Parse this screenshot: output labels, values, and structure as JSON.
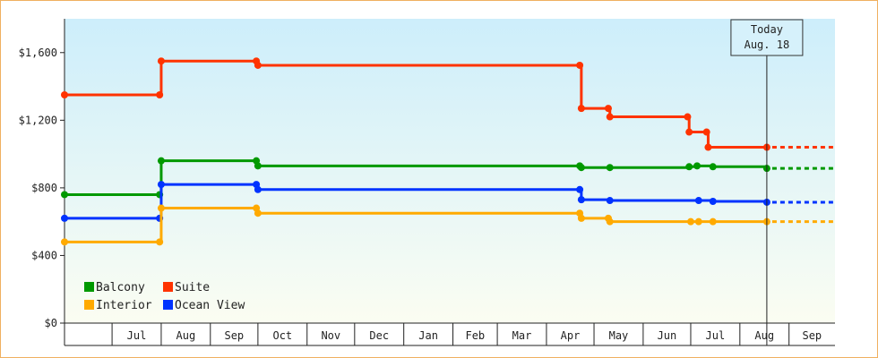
{
  "chart_data": {
    "type": "line",
    "step": true,
    "title": "",
    "xlabel": "",
    "ylabel": "",
    "x_range": [
      "2024-06-01",
      "2025-09-30"
    ],
    "ylim": [
      0,
      1800
    ],
    "yticks": [
      0,
      400,
      800,
      1200,
      1600
    ],
    "ytick_labels": [
      "$0",
      "$400",
      "$800",
      "$1,200",
      "$1,600"
    ],
    "xtick_labels": [
      {
        "date": "2024-07-01",
        "label": "Jul"
      },
      {
        "date": "2024-08-01",
        "label": "Aug"
      },
      {
        "date": "2024-09-01",
        "label": "Sep"
      },
      {
        "date": "2024-10-01",
        "label": "Oct"
      },
      {
        "date": "2024-11-01",
        "label": "Nov"
      },
      {
        "date": "2024-12-01",
        "label": "Dec"
      },
      {
        "date": "2025-01-01",
        "label": "Jan"
      },
      {
        "date": "2025-02-01",
        "label": "Feb"
      },
      {
        "date": "2025-03-01",
        "label": "Mar"
      },
      {
        "date": "2025-04-01",
        "label": "Apr"
      },
      {
        "date": "2025-05-01",
        "label": "May"
      },
      {
        "date": "2025-06-01",
        "label": "Jun"
      },
      {
        "date": "2025-07-01",
        "label": "Jul"
      },
      {
        "date": "2025-08-01",
        "label": "Aug"
      },
      {
        "date": "2025-09-01",
        "label": "Sep"
      }
    ],
    "grid": false,
    "legend_position": "bottom-left",
    "today": {
      "date": "2025-08-18",
      "label_line1": "Today",
      "label_line2": "Aug. 18"
    },
    "projection_end": "2025-09-30",
    "series": [
      {
        "name": "Suite",
        "color": "#ff3300",
        "points": [
          [
            "2024-06-01",
            1350
          ],
          [
            "2024-07-31",
            1350
          ],
          [
            "2024-08-01",
            1550
          ],
          [
            "2024-09-30",
            1550
          ],
          [
            "2024-10-01",
            1525
          ],
          [
            "2025-04-22",
            1525
          ],
          [
            "2025-04-23",
            1270
          ],
          [
            "2025-05-10",
            1270
          ],
          [
            "2025-05-11",
            1220
          ],
          [
            "2025-06-29",
            1220
          ],
          [
            "2025-06-30",
            1130
          ],
          [
            "2025-07-11",
            1130
          ],
          [
            "2025-07-12",
            1040
          ],
          [
            "2025-08-18",
            1040
          ]
        ]
      },
      {
        "name": "Balcony",
        "color": "#009900",
        "points": [
          [
            "2024-06-01",
            760
          ],
          [
            "2024-07-31",
            760
          ],
          [
            "2024-08-01",
            960
          ],
          [
            "2024-09-30",
            960
          ],
          [
            "2024-10-01",
            930
          ],
          [
            "2025-04-22",
            930
          ],
          [
            "2025-04-23",
            920
          ],
          [
            "2025-05-11",
            920
          ],
          [
            "2025-06-30",
            925
          ],
          [
            "2025-07-05",
            930
          ],
          [
            "2025-07-15",
            925
          ],
          [
            "2025-08-18",
            915
          ]
        ]
      },
      {
        "name": "Ocean View",
        "color": "#0033ff",
        "points": [
          [
            "2024-06-01",
            620
          ],
          [
            "2024-07-31",
            620
          ],
          [
            "2024-08-01",
            820
          ],
          [
            "2024-09-30",
            820
          ],
          [
            "2024-10-01",
            790
          ],
          [
            "2025-04-22",
            790
          ],
          [
            "2025-04-23",
            730
          ],
          [
            "2025-05-11",
            725
          ],
          [
            "2025-07-06",
            725
          ],
          [
            "2025-07-15",
            720
          ],
          [
            "2025-08-18",
            715
          ]
        ]
      },
      {
        "name": "Interior",
        "color": "#ffaa00",
        "points": [
          [
            "2024-06-01",
            480
          ],
          [
            "2024-07-31",
            480
          ],
          [
            "2024-08-01",
            680
          ],
          [
            "2024-09-30",
            680
          ],
          [
            "2024-10-01",
            650
          ],
          [
            "2025-04-22",
            650
          ],
          [
            "2025-04-23",
            620
          ],
          [
            "2025-05-10",
            620
          ],
          [
            "2025-05-11",
            600
          ],
          [
            "2025-07-01",
            600
          ],
          [
            "2025-07-06",
            600
          ],
          [
            "2025-07-15",
            600
          ],
          [
            "2025-08-18",
            600
          ]
        ]
      }
    ],
    "legend": [
      {
        "name": "Balcony",
        "color": "#009900"
      },
      {
        "name": "Suite",
        "color": "#ff3300"
      },
      {
        "name": "Interior",
        "color": "#ffaa00"
      },
      {
        "name": "Ocean View",
        "color": "#0033ff"
      }
    ]
  }
}
